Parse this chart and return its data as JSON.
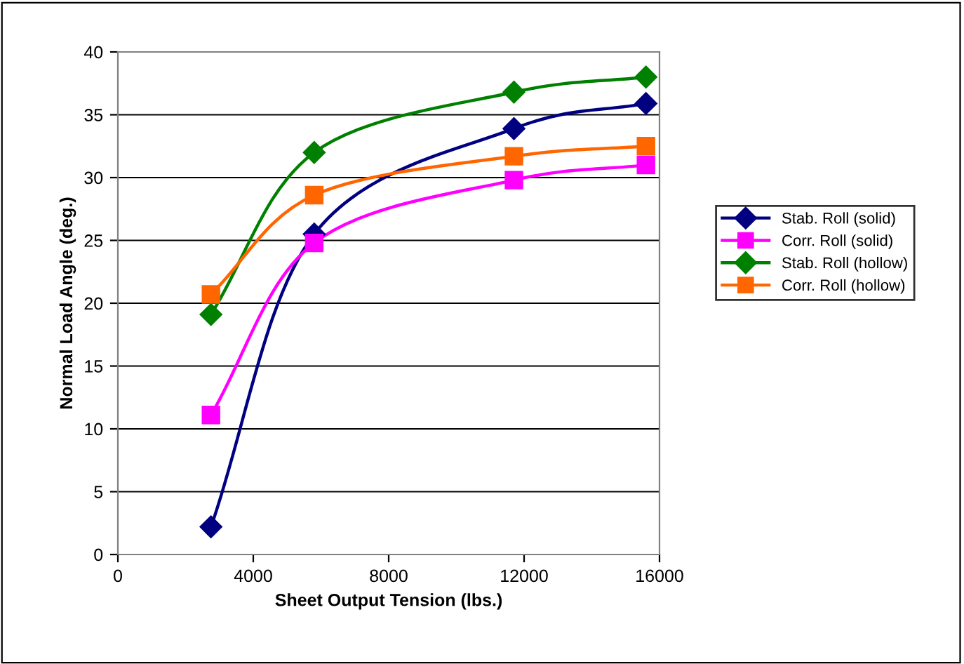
{
  "chart_data": {
    "type": "line",
    "xlabel": "Sheet Output Tension (lbs.)",
    "ylabel": "Normal Load Angle (deg.)",
    "x": [
      2750,
      5800,
      11700,
      15600
    ],
    "series": [
      {
        "name": "Stab. Roll (solid)",
        "color": "#000080",
        "values": [
          2.2,
          25.5,
          33.9,
          35.9
        ],
        "marker": "diamond"
      },
      {
        "name": "Corr. Roll (solid)",
        "color": "#ff00ff",
        "values": [
          11.1,
          24.8,
          29.8,
          31.0
        ],
        "marker": "square"
      },
      {
        "name": "Stab. Roll (hollow)",
        "color": "#008000",
        "values": [
          19.1,
          32.0,
          36.8,
          38.0
        ],
        "marker": "diamond"
      },
      {
        "name": "Corr. Roll (hollow)",
        "color": "#ff6600",
        "values": [
          20.7,
          28.6,
          31.7,
          32.5
        ],
        "marker": "square"
      }
    ],
    "xlim": [
      0,
      16000
    ],
    "xticks": [
      0,
      4000,
      8000,
      12000,
      16000
    ],
    "ylim": [
      0,
      40
    ],
    "yticks": [
      0,
      5,
      10,
      15,
      20,
      25,
      30,
      35,
      40
    ],
    "grid": "y",
    "legend": "right",
    "line_style": "solid"
  }
}
